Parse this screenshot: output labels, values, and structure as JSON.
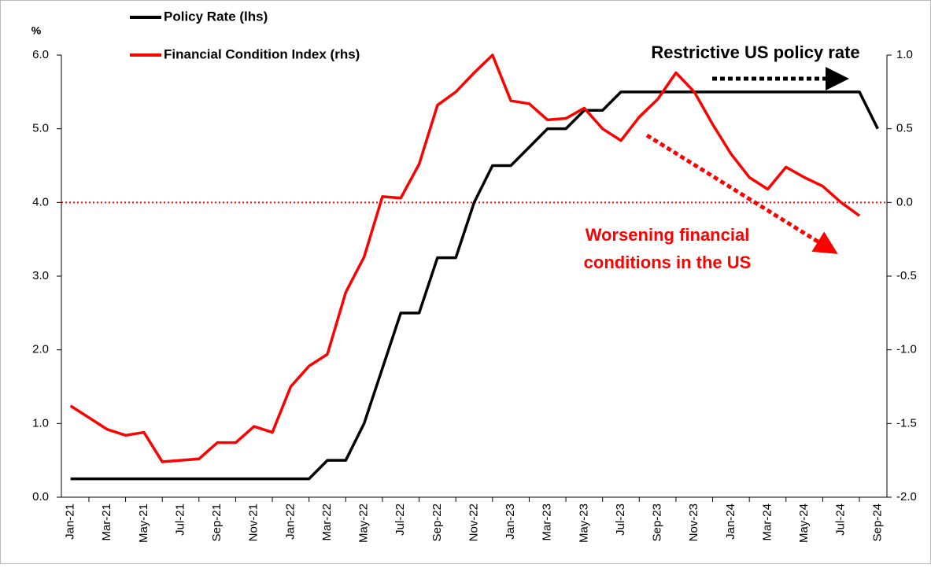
{
  "chart_data": {
    "type": "line",
    "y_unit_label": "%",
    "categories": [
      "Jan-21",
      null,
      "Mar-21",
      null,
      "May-21",
      null,
      "Jul-21",
      null,
      "Sep-21",
      null,
      "Nov-21",
      null,
      "Jan-22",
      null,
      "Mar-22",
      null,
      "May-22",
      null,
      "Jul-22",
      null,
      "Sep-22",
      null,
      "Nov-22",
      null,
      "Jan-23",
      null,
      "Mar-23",
      null,
      "May-23",
      null,
      "Jul-23",
      null,
      "Sep-23",
      null,
      "Nov-23",
      null,
      "Jan-24",
      null,
      "Mar-24",
      null,
      "May-24",
      null,
      "Jul-24",
      null,
      "Sep-24"
    ],
    "series": [
      {
        "name": "Policy Rate (lhs)",
        "color": "#000000",
        "axis": "y",
        "values": [
          0.25,
          0.25,
          0.25,
          0.25,
          0.25,
          0.25,
          0.25,
          0.25,
          0.25,
          0.25,
          0.25,
          0.25,
          0.25,
          0.25,
          0.5,
          0.5,
          1.0,
          1.75,
          2.5,
          2.5,
          3.25,
          3.25,
          4.0,
          4.5,
          4.5,
          4.75,
          5.0,
          5.0,
          5.25,
          5.25,
          5.5,
          5.5,
          5.5,
          5.5,
          5.5,
          5.5,
          5.5,
          5.5,
          5.5,
          5.5,
          5.5,
          5.5,
          5.5,
          5.5,
          5.0
        ]
      },
      {
        "name": "Financial Condition Index (rhs)",
        "color": "#ff0000",
        "axis": "y2",
        "values": [
          -1.38,
          -1.46,
          -1.54,
          -1.58,
          -1.56,
          -1.76,
          -1.75,
          -1.74,
          -1.63,
          -1.63,
          -1.52,
          -1.56,
          -1.25,
          -1.11,
          -1.03,
          -0.61,
          -0.37,
          0.04,
          0.03,
          0.26,
          0.66,
          0.75,
          0.88,
          1.0,
          0.69,
          0.67,
          0.56,
          0.57,
          0.64,
          0.5,
          0.42,
          0.58,
          0.7,
          0.88,
          0.75,
          0.53,
          0.33,
          0.17,
          0.09,
          0.24,
          0.17,
          0.11,
          0.0,
          -0.09,
          null
        ]
      }
    ],
    "ylim": [
      0,
      6
    ],
    "yticks": [
      {
        "value": 0,
        "label": "0.0"
      },
      {
        "value": 1,
        "label": "1.0"
      },
      {
        "value": 2,
        "label": "2.0"
      },
      {
        "value": 3,
        "label": "3.0"
      },
      {
        "value": 4,
        "label": "4.0"
      },
      {
        "value": 5,
        "label": "5.0"
      },
      {
        "value": 6,
        "label": "6.0"
      }
    ],
    "y2lim": [
      -2,
      1
    ],
    "y2ticks": [
      {
        "value": -2,
        "label": "-2.0"
      },
      -1.5,
      {
        "value": -1,
        "label": "-1.0"
      },
      -0.5,
      {
        "value": 0,
        "label": "0.0"
      },
      0.5,
      {
        "value": 1,
        "label": "1.0"
      }
    ],
    "reference_line": {
      "value": 0,
      "axis": "y2",
      "color": "#ff0000"
    },
    "annotations": [
      {
        "text": "Restrictive US policy rate",
        "color": "#000000"
      },
      {
        "lines": [
          "Worsening financial",
          "conditions in the US"
        ],
        "color": "#ff0000"
      }
    ],
    "legend": "top-left"
  }
}
